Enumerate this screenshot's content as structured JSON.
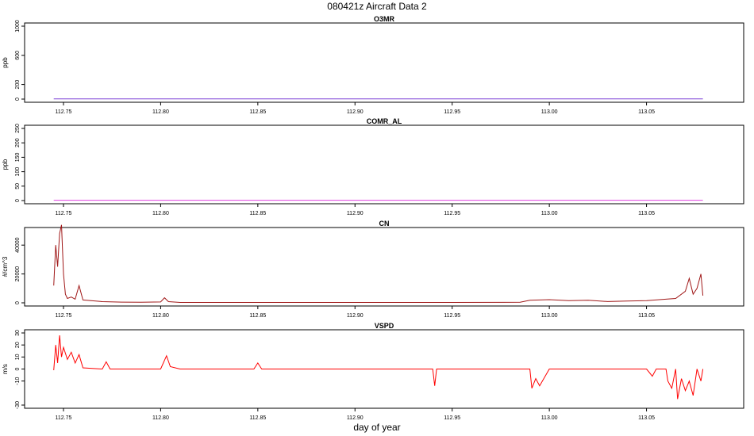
{
  "figure_title": "080421z   Aircraft Data 2",
  "x_axis_label": "day of year",
  "chart_data": [
    {
      "type": "line",
      "title": "O3MR",
      "ylabel": "ppb",
      "xlim": [
        112.73,
        113.1
      ],
      "ylim": [
        0,
        1000
      ],
      "yticks": [
        0,
        200,
        600,
        1000
      ],
      "xticks": [
        112.75,
        112.8,
        112.85,
        112.9,
        112.95,
        113.0,
        113.05
      ],
      "xtick_labels": [
        "112.75",
        "112.80",
        "112.85",
        "112.90",
        "112.95",
        "113.00",
        "113.05"
      ],
      "series": [
        {
          "color": "#7b3fd6",
          "x": [
            112.745,
            113.079
          ],
          "y": [
            2,
            2
          ]
        }
      ]
    },
    {
      "type": "line",
      "title": "COMR_AL",
      "ylabel": "ppb",
      "xlim": [
        112.73,
        113.1
      ],
      "ylim": [
        0,
        250
      ],
      "yticks": [
        0,
        50,
        100,
        150,
        200,
        250
      ],
      "xticks": [
        112.75,
        112.8,
        112.85,
        112.9,
        112.95,
        113.0,
        113.05
      ],
      "xtick_labels": [
        "112.75",
        "112.80",
        "112.85",
        "112.90",
        "112.95",
        "113.00",
        "113.05"
      ],
      "series": [
        {
          "color": "#e040e0",
          "x": [
            112.745,
            113.079
          ],
          "y": [
            1,
            1
          ]
        }
      ]
    },
    {
      "type": "line",
      "title": "CN",
      "ylabel": "#/cm^3",
      "xlim": [
        112.73,
        113.1
      ],
      "ylim": [
        0,
        50000
      ],
      "yticks": [
        0,
        20000,
        40000
      ],
      "xticks": [
        112.75,
        112.8,
        112.85,
        112.9,
        112.95,
        113.0,
        113.05
      ],
      "xtick_labels": [
        "112.75",
        "112.80",
        "112.85",
        "112.90",
        "112.95",
        "113.00",
        "113.05"
      ],
      "series": [
        {
          "color": "#a01818",
          "x": [
            112.745,
            112.746,
            112.747,
            112.748,
            112.749,
            112.75,
            112.751,
            112.752,
            112.754,
            112.756,
            112.758,
            112.76,
            112.77,
            112.78,
            112.79,
            112.8,
            112.802,
            112.804,
            112.81,
            112.85,
            112.9,
            112.95,
            112.985,
            112.99,
            113.0,
            113.01,
            113.02,
            113.03,
            113.04,
            113.05,
            113.06,
            113.065,
            113.07,
            113.072,
            113.074,
            113.076,
            113.078,
            113.079
          ],
          "y": [
            12000,
            40000,
            25000,
            48000,
            54000,
            20000,
            6000,
            3000,
            4000,
            2500,
            12000,
            2000,
            800,
            500,
            400,
            600,
            3500,
            800,
            300,
            300,
            300,
            300,
            400,
            1800,
            2200,
            1500,
            1800,
            900,
            1200,
            1500,
            2500,
            3000,
            8000,
            17000,
            6000,
            10000,
            20000,
            5000
          ]
        }
      ]
    },
    {
      "type": "line",
      "title": "VSPD",
      "ylabel": "m/s",
      "xlim": [
        112.73,
        113.1
      ],
      "ylim": [
        -30,
        30
      ],
      "yticks": [
        -30,
        -10,
        0,
        10,
        20,
        30
      ],
      "xticks": [
        112.75,
        112.8,
        112.85,
        112.9,
        112.95,
        113.0,
        113.05
      ],
      "xtick_labels": [
        "112.75",
        "112.80",
        "112.85",
        "112.90",
        "112.95",
        "113.00",
        "113.05"
      ],
      "series": [
        {
          "color": "#ff0000",
          "x": [
            112.745,
            112.746,
            112.747,
            112.748,
            112.749,
            112.75,
            112.752,
            112.754,
            112.756,
            112.758,
            112.76,
            112.77,
            112.772,
            112.774,
            112.78,
            112.8,
            112.803,
            112.805,
            112.81,
            112.848,
            112.85,
            112.852,
            112.9,
            112.94,
            112.941,
            112.942,
            112.99,
            112.991,
            112.993,
            112.995,
            113.0,
            113.05,
            113.053,
            113.055,
            113.06,
            113.061,
            113.063,
            113.065,
            113.066,
            113.068,
            113.07,
            113.072,
            113.074,
            113.076,
            113.078,
            113.079
          ],
          "y": [
            -1,
            20,
            5,
            28,
            10,
            18,
            8,
            14,
            5,
            12,
            1,
            0,
            6,
            0,
            0,
            0,
            11,
            2,
            0,
            0,
            5,
            0,
            0,
            0,
            -14,
            0,
            0,
            -16,
            -8,
            -14,
            0,
            0,
            -6,
            0,
            0,
            -10,
            -16,
            0,
            -25,
            -8,
            -18,
            -10,
            -22,
            0,
            -10,
            0
          ]
        }
      ]
    }
  ]
}
